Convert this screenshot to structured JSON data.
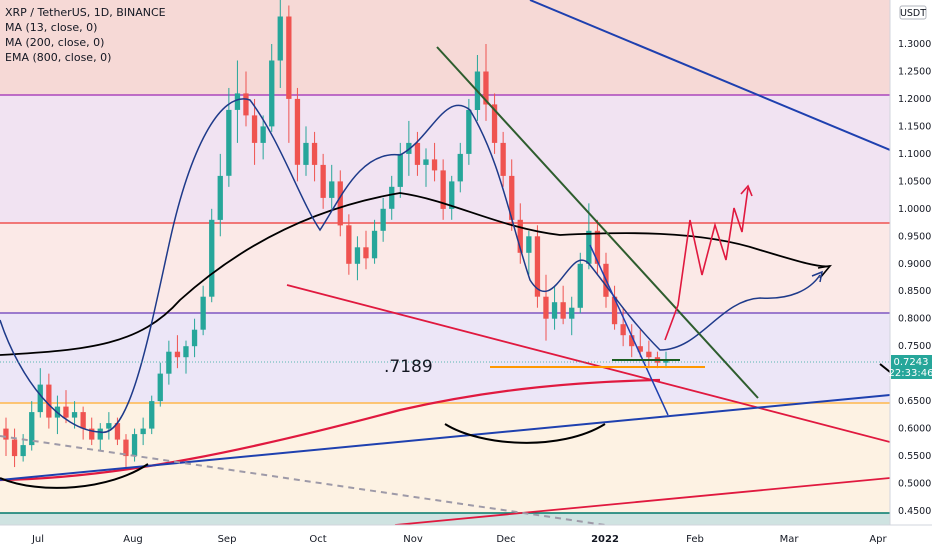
{
  "legend": {
    "symbol_line": "XRP / TetherUS, 1D, BINANCE",
    "ind1": "MA (13, close, 0)",
    "ind2": "MA (200, close, 0)",
    "ind3": "EMA (800, close, 0)"
  },
  "currency": "USDT",
  "price_label": "0.7243",
  "countdown": "22:33:46",
  "annotation": ".7189",
  "colors": {
    "up": "#26a69a",
    "down": "#ef5350",
    "ma13": "#1e3a8a",
    "ma200": "#000000",
    "ema800": "#e0193f",
    "price_tag": "#26a69a"
  },
  "chart_data": {
    "type": "candlestick",
    "x_ticks": [
      "Jul",
      "Aug",
      "Sep",
      "Oct",
      "Nov",
      "Dec",
      "2022",
      "Feb",
      "Mar",
      "Apr"
    ],
    "y_ticks": [
      "1.3000",
      "1.2500",
      "1.2000",
      "1.1500",
      "1.1000",
      "1.0500",
      "1.0000",
      "0.9500",
      "0.9000",
      "0.8500",
      "0.8000",
      "0.7500",
      "0.7000",
      "0.6500",
      "0.6000",
      "0.5500",
      "0.5000",
      "0.4500"
    ],
    "ylim": [
      0.43,
      1.37
    ],
    "horizontal_levels": [
      {
        "value": 1.205,
        "color": "#9c27b0"
      },
      {
        "value": 0.975,
        "color": "#ef5350"
      },
      {
        "value": 0.812,
        "color": "#7e57c2"
      },
      {
        "value": 0.648,
        "color": "#ffb74d"
      },
      {
        "value": 0.455,
        "color": "#00796b"
      }
    ],
    "series": [
      {
        "name": "XRP / TetherUS",
        "kind": "candles",
        "values": [
          [
            0.6,
            0.62,
            0.55,
            0.58
          ],
          [
            0.58,
            0.6,
            0.53,
            0.55
          ],
          [
            0.55,
            0.59,
            0.54,
            0.57
          ],
          [
            0.57,
            0.65,
            0.56,
            0.63
          ],
          [
            0.63,
            0.71,
            0.62,
            0.68
          ],
          [
            0.68,
            0.7,
            0.6,
            0.62
          ],
          [
            0.62,
            0.66,
            0.59,
            0.64
          ],
          [
            0.64,
            0.67,
            0.61,
            0.62
          ],
          [
            0.62,
            0.65,
            0.6,
            0.63
          ],
          [
            0.63,
            0.64,
            0.58,
            0.6
          ],
          [
            0.6,
            0.62,
            0.57,
            0.58
          ],
          [
            0.58,
            0.61,
            0.56,
            0.6
          ],
          [
            0.6,
            0.63,
            0.58,
            0.61
          ],
          [
            0.61,
            0.62,
            0.57,
            0.58
          ],
          [
            0.58,
            0.59,
            0.53,
            0.55
          ],
          [
            0.55,
            0.6,
            0.54,
            0.59
          ],
          [
            0.59,
            0.62,
            0.57,
            0.6
          ],
          [
            0.6,
            0.66,
            0.59,
            0.65
          ],
          [
            0.65,
            0.72,
            0.64,
            0.7
          ],
          [
            0.7,
            0.76,
            0.68,
            0.74
          ],
          [
            0.74,
            0.77,
            0.71,
            0.73
          ],
          [
            0.73,
            0.76,
            0.7,
            0.75
          ],
          [
            0.75,
            0.8,
            0.73,
            0.78
          ],
          [
            0.78,
            0.86,
            0.77,
            0.84
          ],
          [
            0.84,
            1.0,
            0.83,
            0.98
          ],
          [
            0.98,
            1.1,
            0.95,
            1.06
          ],
          [
            1.06,
            1.22,
            1.04,
            1.18
          ],
          [
            1.18,
            1.27,
            1.12,
            1.21
          ],
          [
            1.21,
            1.25,
            1.15,
            1.17
          ],
          [
            1.17,
            1.2,
            1.08,
            1.12
          ],
          [
            1.12,
            1.17,
            1.09,
            1.15
          ],
          [
            1.15,
            1.3,
            1.14,
            1.27
          ],
          [
            1.27,
            1.4,
            1.22,
            1.35
          ],
          [
            1.35,
            1.37,
            1.12,
            1.2
          ],
          [
            1.2,
            1.22,
            1.05,
            1.08
          ],
          [
            1.08,
            1.15,
            1.06,
            1.12
          ],
          [
            1.12,
            1.14,
            1.05,
            1.08
          ],
          [
            1.08,
            1.1,
            1.0,
            1.02
          ],
          [
            1.02,
            1.08,
            1.0,
            1.05
          ],
          [
            1.05,
            1.07,
            0.95,
            0.97
          ],
          [
            0.97,
            0.99,
            0.88,
            0.9
          ],
          [
            0.9,
            0.95,
            0.87,
            0.93
          ],
          [
            0.93,
            0.96,
            0.89,
            0.91
          ],
          [
            0.91,
            0.98,
            0.9,
            0.96
          ],
          [
            0.96,
            1.02,
            0.94,
            1.0
          ],
          [
            1.0,
            1.06,
            0.98,
            1.04
          ],
          [
            1.04,
            1.12,
            1.02,
            1.1
          ],
          [
            1.1,
            1.16,
            1.06,
            1.12
          ],
          [
            1.12,
            1.14,
            1.06,
            1.08
          ],
          [
            1.08,
            1.11,
            1.04,
            1.09
          ],
          [
            1.09,
            1.12,
            1.05,
            1.07
          ],
          [
            1.07,
            1.09,
            0.98,
            1.0
          ],
          [
            1.0,
            1.06,
            0.98,
            1.05
          ],
          [
            1.05,
            1.12,
            1.03,
            1.1
          ],
          [
            1.1,
            1.2,
            1.08,
            1.18
          ],
          [
            1.18,
            1.28,
            1.16,
            1.25
          ],
          [
            1.25,
            1.3,
            1.16,
            1.19
          ],
          [
            1.19,
            1.21,
            1.1,
            1.12
          ],
          [
            1.12,
            1.14,
            1.04,
            1.06
          ],
          [
            1.06,
            1.09,
            0.96,
            0.98
          ],
          [
            0.98,
            1.01,
            0.9,
            0.92
          ],
          [
            0.92,
            0.96,
            0.88,
            0.95
          ],
          [
            0.95,
            0.97,
            0.82,
            0.84
          ],
          [
            0.84,
            0.88,
            0.76,
            0.8
          ],
          [
            0.8,
            0.86,
            0.78,
            0.83
          ],
          [
            0.83,
            0.86,
            0.79,
            0.8
          ],
          [
            0.8,
            0.84,
            0.77,
            0.82
          ],
          [
            0.82,
            0.92,
            0.81,
            0.9
          ],
          [
            0.9,
            1.01,
            0.89,
            0.96
          ],
          [
            0.96,
            0.98,
            0.88,
            0.9
          ],
          [
            0.9,
            0.92,
            0.82,
            0.84
          ],
          [
            0.84,
            0.86,
            0.78,
            0.79
          ],
          [
            0.79,
            0.82,
            0.75,
            0.77
          ],
          [
            0.77,
            0.79,
            0.73,
            0.75
          ],
          [
            0.75,
            0.78,
            0.73,
            0.74
          ],
          [
            0.74,
            0.76,
            0.71,
            0.73
          ],
          [
            0.73,
            0.74,
            0.71,
            0.72
          ],
          [
            0.72,
            0.74,
            0.71,
            0.7243
          ]
        ]
      },
      {
        "name": "MA (13, close, 0)",
        "kind": "line",
        "values": [
          [
            0.0,
            0.78
          ],
          [
            0.02,
            0.7
          ],
          [
            0.05,
            0.62
          ],
          [
            0.09,
            0.6
          ],
          [
            0.12,
            0.57
          ],
          [
            0.15,
            0.6
          ],
          [
            0.18,
            0.68
          ],
          [
            0.22,
            0.92
          ],
          [
            0.25,
            1.16
          ],
          [
            0.28,
            1.15
          ],
          [
            0.31,
            1.05
          ],
          [
            0.34,
            0.96
          ],
          [
            0.37,
            0.91
          ],
          [
            0.4,
            0.98
          ],
          [
            0.43,
            1.08
          ],
          [
            0.46,
            1.1
          ],
          [
            0.48,
            1.14
          ],
          [
            0.51,
            1.12
          ],
          [
            0.54,
            1.03
          ],
          [
            0.57,
            0.93
          ],
          [
            0.6,
            0.83
          ],
          [
            0.63,
            0.82
          ],
          [
            0.66,
            0.9
          ],
          [
            0.69,
            0.86
          ],
          [
            0.72,
            0.77
          ],
          [
            0.75,
            0.73
          ],
          [
            0.77,
            0.75
          ],
          [
            0.8,
            0.8
          ],
          [
            0.83,
            0.85
          ],
          [
            0.86,
            0.85
          ],
          [
            0.89,
            0.88
          ]
        ]
      },
      {
        "name": "MA (200, close, 0)",
        "kind": "line",
        "values": [
          [
            0.0,
            0.74
          ],
          [
            0.05,
            0.75
          ],
          [
            0.1,
            0.76
          ],
          [
            0.15,
            0.78
          ],
          [
            0.2,
            0.83
          ],
          [
            0.25,
            0.88
          ],
          [
            0.3,
            0.94
          ],
          [
            0.35,
            0.99
          ],
          [
            0.4,
            1.02
          ],
          [
            0.45,
            1.02
          ],
          [
            0.5,
            0.99
          ],
          [
            0.55,
            0.96
          ],
          [
            0.6,
            0.95
          ],
          [
            0.65,
            0.95
          ],
          [
            0.7,
            0.96
          ],
          [
            0.75,
            0.95
          ],
          [
            0.8,
            0.92
          ],
          [
            0.85,
            0.9
          ],
          [
            0.89,
            0.89
          ]
        ]
      },
      {
        "name": "EMA (800, close, 0)",
        "kind": "line",
        "values": [
          [
            0.0,
            0.51
          ],
          [
            0.05,
            0.52
          ],
          [
            0.1,
            0.53
          ],
          [
            0.15,
            0.54
          ],
          [
            0.2,
            0.56
          ],
          [
            0.25,
            0.57
          ],
          [
            0.3,
            0.59
          ],
          [
            0.35,
            0.61
          ],
          [
            0.4,
            0.63
          ],
          [
            0.45,
            0.645
          ],
          [
            0.5,
            0.66
          ],
          [
            0.55,
            0.665
          ],
          [
            0.6,
            0.67
          ],
          [
            0.65,
            0.675
          ],
          [
            0.7,
            0.68
          ],
          [
            0.72,
            0.68
          ]
        ]
      }
    ]
  }
}
